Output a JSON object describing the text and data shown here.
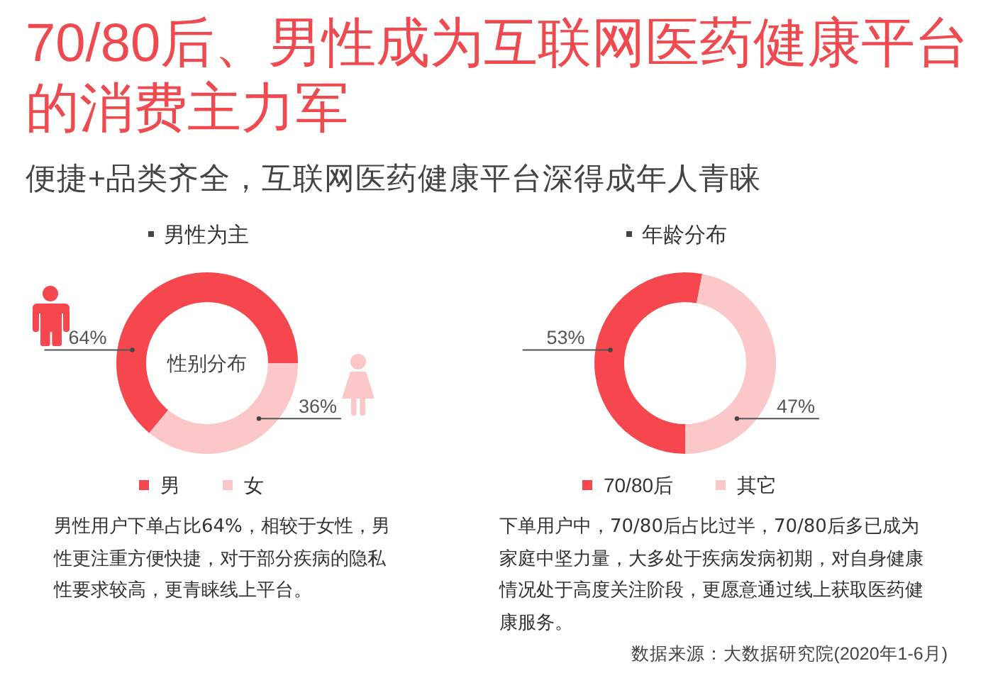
{
  "chart_data": [
    {
      "type": "other",
      "title": "70/80后、男性成为互联网医药健康平台的消费主力军",
      "subtitle": "便捷+品类齐全，互联网医药健康平台深得成年人青睐"
    },
    {
      "type": "donut",
      "title": "男性为主",
      "categories": [
        "男",
        "女"
      ],
      "values": [
        64,
        36
      ],
      "colors": [
        "#f5474d",
        "#fbc7c8"
      ],
      "value_labels": [
        "64%",
        "36%"
      ],
      "legend": "bottom",
      "annotations": [
        "性别分布",
        "男性用户下单占比64%，相较于女性，男性更注重方便快捷，对于部分疾病的隐私性要求较高，更青睐线上平台。"
      ]
    },
    {
      "type": "donut",
      "title": "年龄分布",
      "categories": [
        "70/80后",
        "其它"
      ],
      "values": [
        53,
        47
      ],
      "colors": [
        "#f5474d",
        "#fbc7c8"
      ],
      "value_labels": [
        "53%",
        "47%"
      ],
      "legend": "bottom",
      "annotations": [
        "下单用户中，70/80后占比过半，70/80后多已成为家庭中坚力量，大多处于疾病发病初期，对自身健康情况处于高度关注阶段，更愿意通过线上获取医药健康服务。",
        "数据来源：大数据研究院(2020年1-6月)"
      ]
    }
  ]
}
